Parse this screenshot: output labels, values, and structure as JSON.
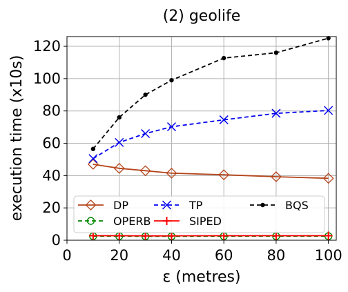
{
  "chart_data": {
    "type": "line",
    "title": "(2) geolife",
    "xlabel": "ε (metres)",
    "ylabel": "execution time (x10s)",
    "xlim": [
      0,
      103
    ],
    "ylim": [
      0,
      126
    ],
    "xticks": [
      0,
      20,
      40,
      60,
      80,
      100
    ],
    "yticks": [
      0,
      20,
      40,
      60,
      80,
      100,
      120
    ],
    "grid": true,
    "legend_position": "lower-center",
    "x": [
      10,
      20,
      30,
      40,
      60,
      80,
      100
    ],
    "series": [
      {
        "name": "DP",
        "values": [
          47,
          44.5,
          43,
          41.5,
          40.5,
          39.3,
          38.3
        ],
        "color": "#b5441b",
        "linestyle": "solid",
        "marker": "diamond-open"
      },
      {
        "name": "TP",
        "values": [
          50.5,
          60.5,
          66,
          70.2,
          74.5,
          78.5,
          80.3
        ],
        "color": "#0000ee",
        "linestyle": "dashed",
        "marker": "x"
      },
      {
        "name": "BQS",
        "values": [
          56.5,
          76,
          90,
          99,
          112.7,
          116,
          125
        ],
        "color": "#000000",
        "linestyle": "dashed",
        "marker": "dot"
      },
      {
        "name": "OPERB",
        "values": [
          2.5,
          2.5,
          2.4,
          2.4,
          2.5,
          2.5,
          2.5
        ],
        "color": "#008800",
        "linestyle": "dashed",
        "marker": "circle-open"
      },
      {
        "name": "SIPED",
        "values": [
          2.8,
          2.8,
          2.7,
          2.7,
          2.8,
          2.8,
          2.8
        ],
        "color": "#ff0000",
        "linestyle": "solid",
        "marker": "plus"
      }
    ]
  }
}
